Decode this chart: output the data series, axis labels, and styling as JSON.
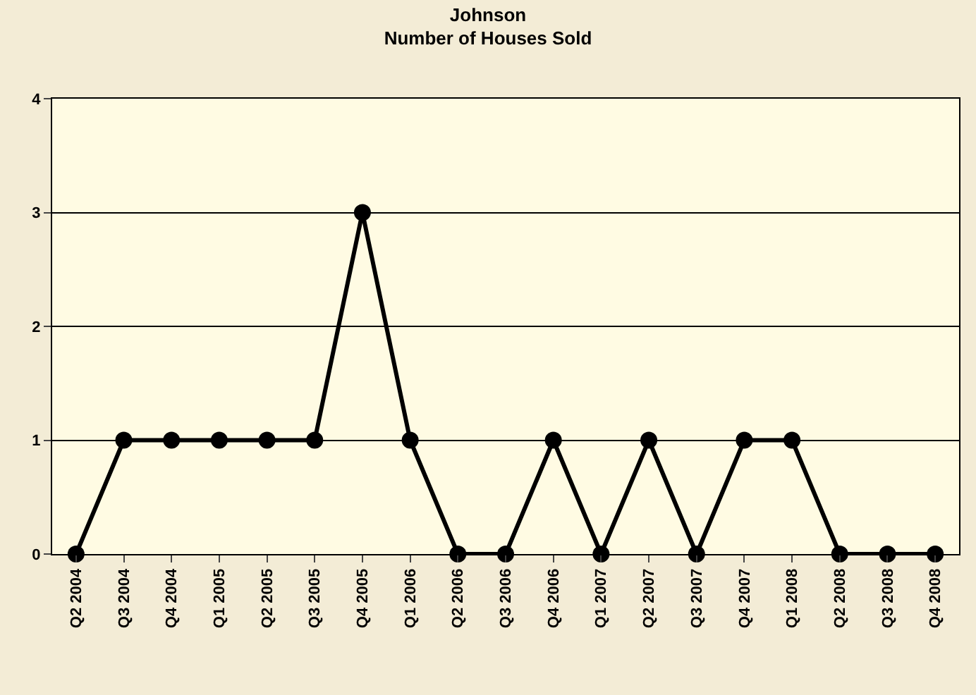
{
  "chart_data": {
    "type": "line",
    "title": "Johnson",
    "subtitle": "Number of Houses Sold",
    "categories": [
      "Q2 2004",
      "Q3 2004",
      "Q4 2004",
      "Q1 2005",
      "Q2 2005",
      "Q3 2005",
      "Q4 2005",
      "Q1 2006",
      "Q2 2006",
      "Q3 2006",
      "Q4 2006",
      "Q1 2007",
      "Q2 2007",
      "Q3 2007",
      "Q4 2007",
      "Q1 2008",
      "Q2 2008",
      "Q3 2008",
      "Q4 2008"
    ],
    "series": [
      {
        "color": "#000000",
        "values": [
          0,
          1,
          1,
          1,
          1,
          1,
          3,
          1,
          0,
          0,
          1,
          0,
          1,
          0,
          1,
          1,
          0,
          0,
          0
        ]
      }
    ],
    "ylim": [
      0,
      4
    ],
    "yticks": [
      0,
      1,
      2,
      3,
      4
    ],
    "grid": "y",
    "marker": "circle",
    "line_style": "solid"
  }
}
